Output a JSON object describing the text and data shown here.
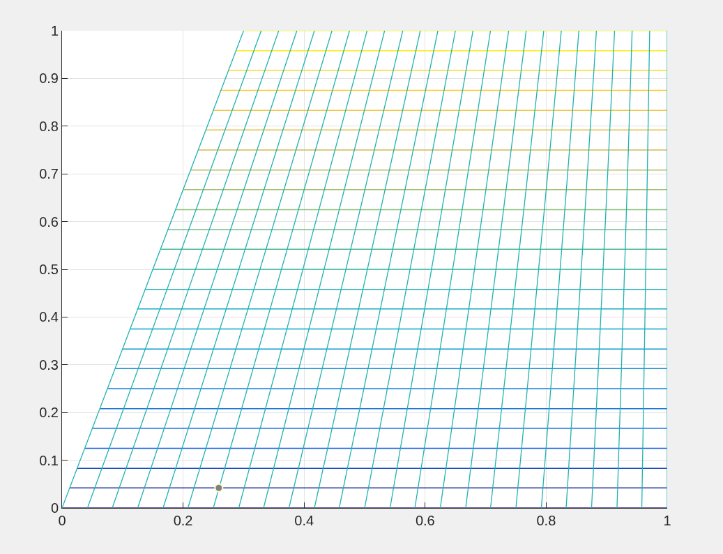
{
  "chart_data": {
    "type": "line",
    "xlim": [
      0,
      1
    ],
    "ylim": [
      0,
      1
    ],
    "xticks": [
      0,
      0.2,
      0.4,
      0.6,
      0.8,
      1
    ],
    "yticks": [
      0,
      0.1,
      0.2,
      0.3,
      0.4,
      0.5,
      0.6,
      0.7,
      0.8,
      0.9,
      1
    ],
    "grid": true,
    "series": [
      {
        "color": "#352a87",
        "x": [
          0,
          1
        ],
        "values": [
          0,
          0
        ]
      },
      {
        "color": "#283ba4",
        "x": [
          0.013,
          1
        ],
        "values": [
          0.042,
          0.042
        ]
      },
      {
        "color": "#1c4bc0",
        "x": [
          0.025,
          1
        ],
        "values": [
          0.083,
          0.083
        ]
      },
      {
        "color": "#0f5cdd",
        "x": [
          0.038,
          1
        ],
        "values": [
          0.125,
          0.125
        ]
      },
      {
        "color": "#1168db",
        "x": [
          0.05,
          1
        ],
        "values": [
          0.167,
          0.167
        ]
      },
      {
        "color": "#1275d8",
        "x": [
          0.063,
          1
        ],
        "values": [
          0.208,
          0.208
        ]
      },
      {
        "color": "#1481d6",
        "x": [
          0.075,
          1
        ],
        "values": [
          0.25,
          0.25
        ]
      },
      {
        "color": "#0f8dd2",
        "x": [
          0.088,
          1
        ],
        "values": [
          0.292,
          0.292
        ]
      },
      {
        "color": "#0b98ce",
        "x": [
          0.1,
          1
        ],
        "values": [
          0.333,
          0.333
        ]
      },
      {
        "color": "#06a4ca",
        "x": [
          0.113,
          1
        ],
        "values": [
          0.375,
          0.375
        ]
      },
      {
        "color": "#13aabd",
        "x": [
          0.125,
          1
        ],
        "values": [
          0.417,
          0.417
        ]
      },
      {
        "color": "#21b1b1",
        "x": [
          0.138,
          1
        ],
        "values": [
          0.458,
          0.458
        ]
      },
      {
        "color": "#2eb7a4",
        "x": [
          0.15,
          1
        ],
        "values": [
          0.5,
          0.5
        ]
      },
      {
        "color": "#4cba95",
        "x": [
          0.163,
          1
        ],
        "values": [
          0.542,
          0.542
        ]
      },
      {
        "color": "#69bc86",
        "x": [
          0.175,
          1
        ],
        "values": [
          0.583,
          0.583
        ]
      },
      {
        "color": "#87bf77",
        "x": [
          0.188,
          1
        ],
        "values": [
          0.625,
          0.625
        ]
      },
      {
        "color": "#a0be6d",
        "x": [
          0.2,
          1
        ],
        "values": [
          0.667,
          0.667
        ]
      },
      {
        "color": "#b8bc63",
        "x": [
          0.213,
          1
        ],
        "values": [
          0.708,
          0.708
        ]
      },
      {
        "color": "#d1bb59",
        "x": [
          0.225,
          1
        ],
        "values": [
          0.75,
          0.75
        ]
      },
      {
        "color": "#e0bf4c",
        "x": [
          0.238,
          1
        ],
        "values": [
          0.792,
          0.792
        ]
      },
      {
        "color": "#efc43f",
        "x": [
          0.25,
          1
        ],
        "values": [
          0.833,
          0.833
        ]
      },
      {
        "color": "#fec832",
        "x": [
          0.263,
          1
        ],
        "values": [
          0.875,
          0.875
        ]
      },
      {
        "color": "#fcd926",
        "x": [
          0.275,
          1
        ],
        "values": [
          0.917,
          0.917
        ]
      },
      {
        "color": "#fbea1a",
        "x": [
          0.288,
          1
        ],
        "values": [
          0.958,
          0.958
        ]
      },
      {
        "color": "#f9fb0e",
        "x": [
          0.3,
          1
        ],
        "values": [
          1,
          1
        ]
      },
      {
        "color": "#21b1b1",
        "x": [
          0,
          0.3
        ],
        "values": [
          0,
          1
        ]
      },
      {
        "color": "#21b1b1",
        "x": [
          0.042,
          0.329
        ],
        "values": [
          0,
          1
        ]
      },
      {
        "color": "#21b1b1",
        "x": [
          0.083,
          0.358
        ],
        "values": [
          0,
          1
        ]
      },
      {
        "color": "#21b1b1",
        "x": [
          0.125,
          0.388
        ],
        "values": [
          0,
          1
        ]
      },
      {
        "color": "#21b1b1",
        "x": [
          0.167,
          0.417
        ],
        "values": [
          0,
          1
        ]
      },
      {
        "color": "#21b1b1",
        "x": [
          0.208,
          0.446
        ],
        "values": [
          0,
          1
        ]
      },
      {
        "color": "#21b1b1",
        "x": [
          0.25,
          0.475
        ],
        "values": [
          0,
          1
        ]
      },
      {
        "color": "#21b1b1",
        "x": [
          0.292,
          0.504
        ],
        "values": [
          0,
          1
        ]
      },
      {
        "color": "#21b1b1",
        "x": [
          0.333,
          0.533
        ],
        "values": [
          0,
          1
        ]
      },
      {
        "color": "#21b1b1",
        "x": [
          0.375,
          0.563
        ],
        "values": [
          0,
          1
        ]
      },
      {
        "color": "#21b1b1",
        "x": [
          0.417,
          0.592
        ],
        "values": [
          0,
          1
        ]
      },
      {
        "color": "#21b1b1",
        "x": [
          0.458,
          0.621
        ],
        "values": [
          0,
          1
        ]
      },
      {
        "color": "#21b1b1",
        "x": [
          0.5,
          0.65
        ],
        "values": [
          0,
          1
        ]
      },
      {
        "color": "#21b1b1",
        "x": [
          0.542,
          0.679
        ],
        "values": [
          0,
          1
        ]
      },
      {
        "color": "#21b1b1",
        "x": [
          0.583,
          0.708
        ],
        "values": [
          0,
          1
        ]
      },
      {
        "color": "#21b1b1",
        "x": [
          0.625,
          0.738
        ],
        "values": [
          0,
          1
        ]
      },
      {
        "color": "#21b1b1",
        "x": [
          0.667,
          0.767
        ],
        "values": [
          0,
          1
        ]
      },
      {
        "color": "#21b1b1",
        "x": [
          0.708,
          0.796
        ],
        "values": [
          0,
          1
        ]
      },
      {
        "color": "#21b1b1",
        "x": [
          0.75,
          0.825
        ],
        "values": [
          0,
          1
        ]
      },
      {
        "color": "#21b1b1",
        "x": [
          0.792,
          0.854
        ],
        "values": [
          0,
          1
        ]
      },
      {
        "color": "#21b1b1",
        "x": [
          0.833,
          0.883
        ],
        "values": [
          0,
          1
        ]
      },
      {
        "color": "#21b1b1",
        "x": [
          0.875,
          0.913
        ],
        "values": [
          0,
          1
        ]
      },
      {
        "color": "#21b1b1",
        "x": [
          0.917,
          0.942
        ],
        "values": [
          0,
          1
        ]
      },
      {
        "color": "#21b1b1",
        "x": [
          0.958,
          0.971
        ],
        "values": [
          0,
          1
        ]
      },
      {
        "color": "#21b1b1",
        "x": [
          1,
          1
        ],
        "values": [
          0,
          1
        ]
      },
      {
        "type": "scatter",
        "marker": "circle",
        "color": "#808080",
        "x": [
          0.259
        ],
        "values": [
          0.042
        ]
      }
    ]
  }
}
